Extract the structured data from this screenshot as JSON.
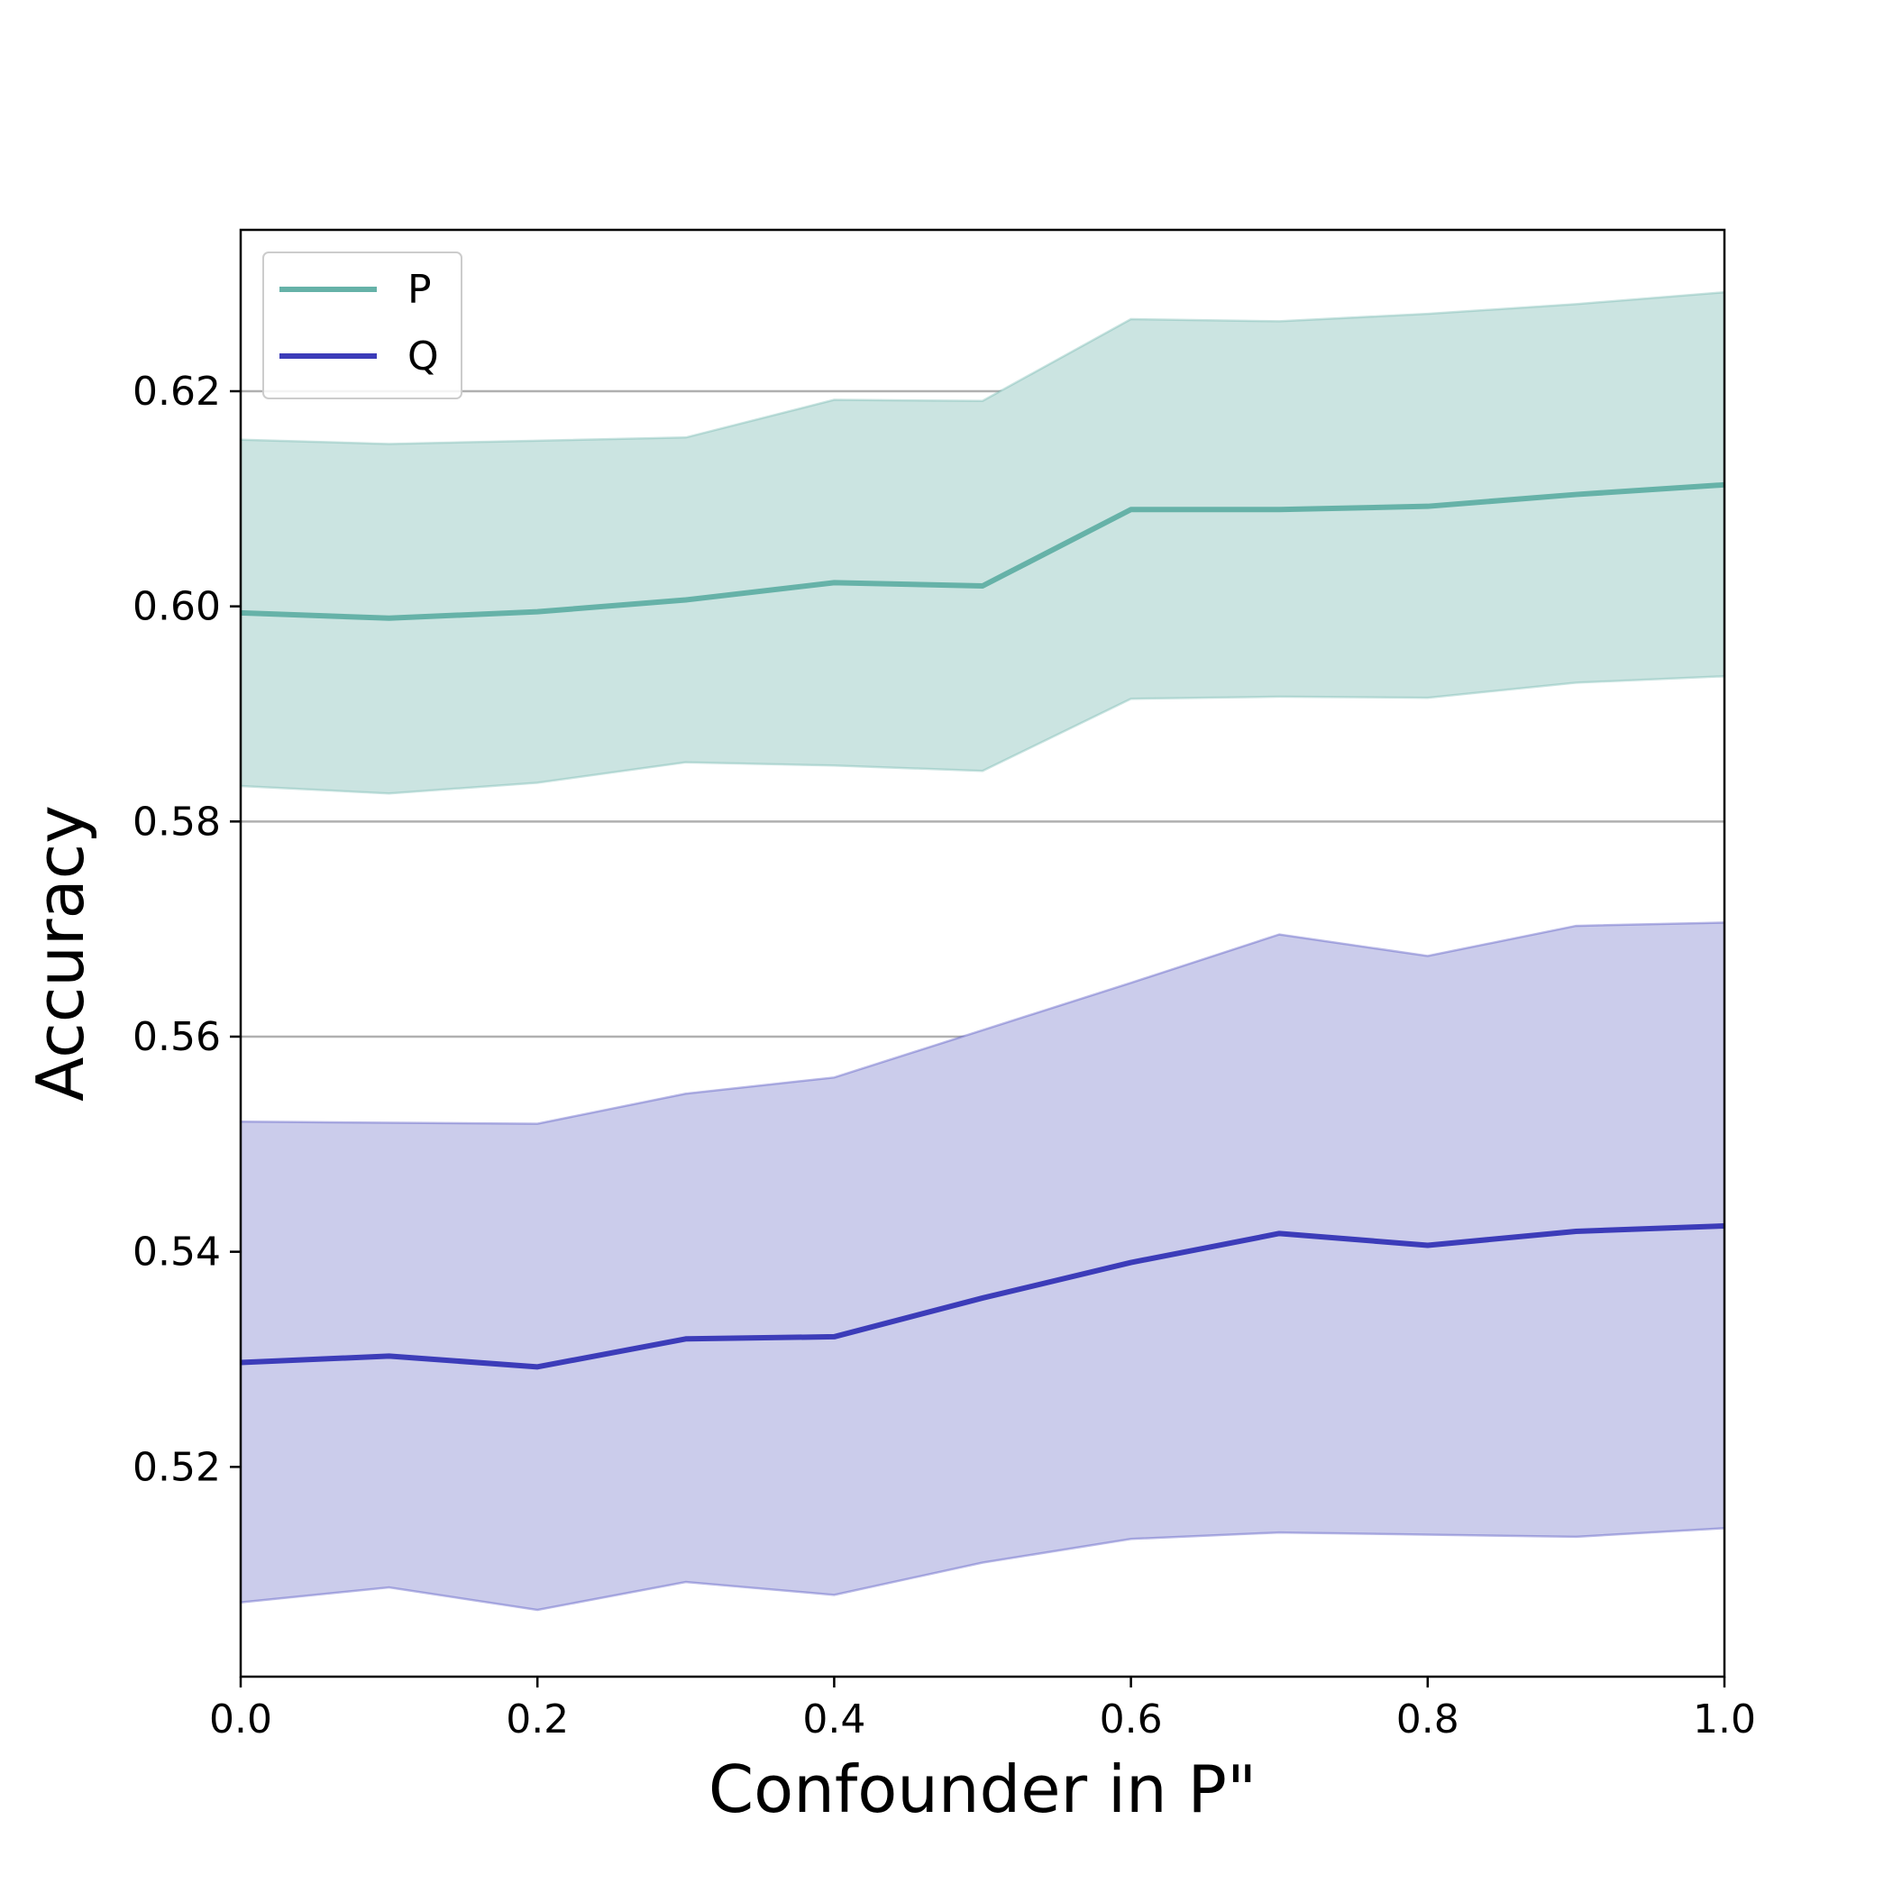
{
  "chart_data": {
    "type": "line",
    "xlabel": "Confounder in P\"",
    "ylabel": "Accuracy",
    "xlim": [
      0.0,
      1.0
    ],
    "ylim": [
      0.5005,
      0.635
    ],
    "x_ticks": [
      "0.0",
      "0.2",
      "0.4",
      "0.6",
      "0.8",
      "1.0"
    ],
    "y_ticks": [
      "0.52",
      "0.54",
      "0.56",
      "0.58",
      "0.60",
      "0.62"
    ],
    "grid": "horizontal",
    "legend_position": "top-left",
    "x": [
      0.0,
      0.1,
      0.2,
      0.3,
      0.4,
      0.5,
      0.6,
      0.7,
      0.8,
      0.9,
      1.0
    ],
    "series": [
      {
        "name": "P",
        "color": "#66b2a8",
        "fill_color": "#cbe4e1",
        "mean": [
          0.5994,
          0.5989,
          0.5995,
          0.6006,
          0.6022,
          0.6019,
          0.609,
          0.609,
          0.6093,
          0.6104,
          0.6113
        ],
        "upper": [
          0.6155,
          0.6151,
          0.6154,
          0.6157,
          0.6192,
          0.6191,
          0.6267,
          0.6265,
          0.6272,
          0.6281,
          0.6292
        ],
        "lower": [
          0.5833,
          0.5826,
          0.5836,
          0.5855,
          0.5852,
          0.5847,
          0.5914,
          0.5916,
          0.5915,
          0.5929,
          0.5935
        ]
      },
      {
        "name": "Q",
        "color": "#3c3cb9",
        "fill_color": "#cbcceb",
        "mean": [
          0.5297,
          0.5303,
          0.5293,
          0.5319,
          0.5321,
          0.5357,
          0.539,
          0.5417,
          0.5406,
          0.5419,
          0.5424
        ],
        "upper": [
          0.5521,
          0.552,
          0.5519,
          0.5547,
          0.5562,
          0.5606,
          0.565,
          0.5695,
          0.5675,
          0.5703,
          0.5706
        ],
        "lower": [
          0.5074,
          0.5088,
          0.5067,
          0.5093,
          0.5081,
          0.5111,
          0.5133,
          0.5139,
          0.5137,
          0.5135,
          0.5143
        ]
      }
    ]
  }
}
